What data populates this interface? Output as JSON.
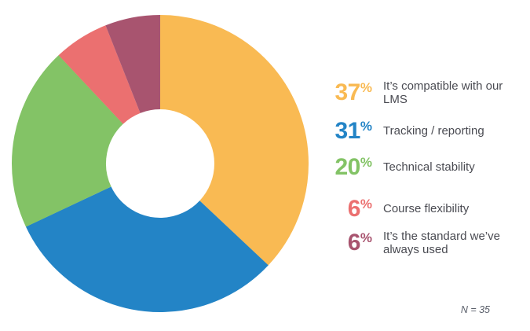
{
  "chart_data": {
    "type": "pie",
    "subtype": "donut",
    "title": "",
    "categories": [
      "It’s compatible with our LMS",
      "Tracking / reporting",
      "Technical stability",
      "Course flexibility",
      "It’s the standard we’ve always used"
    ],
    "values": [
      37,
      31,
      20,
      6,
      6
    ],
    "unit": "%",
    "colors": [
      "#F9BA53",
      "#2384C6",
      "#83C366",
      "#EB7070",
      "#A8546F"
    ],
    "start_angle_deg": 0,
    "direction": "clockwise",
    "inner_radius_ratio": 0.365,
    "legend_position": "right",
    "percent_sign": "%"
  },
  "footnote": {
    "text": "N = 35"
  }
}
